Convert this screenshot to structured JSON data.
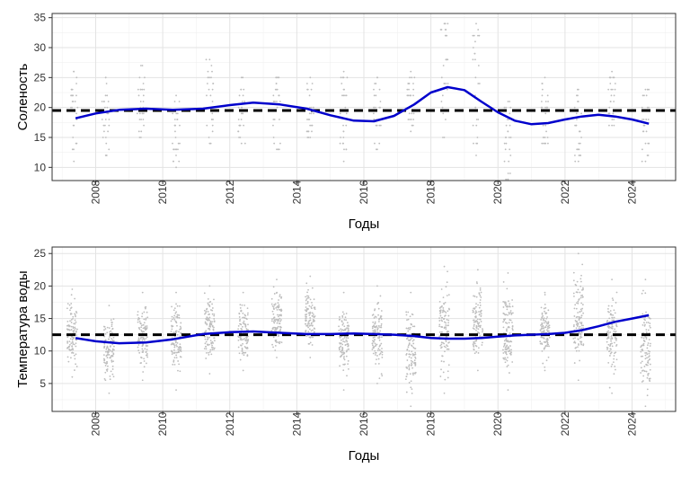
{
  "chart_data": [
    {
      "type": "scatter",
      "xlabel": "Годы",
      "ylabel": "Соленость",
      "xlim": [
        2006.7,
        2025.3
      ],
      "ylim": [
        7.8,
        35.7
      ],
      "x_ticks": [
        2008,
        2010,
        2012,
        2014,
        2016,
        2018,
        2020,
        2022,
        2024
      ],
      "y_ticks": [
        10,
        15,
        20,
        25,
        30,
        35
      ],
      "grid": true,
      "reference_line": {
        "y": 19.5,
        "style": "dashed",
        "color": "#000000"
      },
      "point_color": "#bdbdbd",
      "smooth_color": "#0000cc",
      "smooth": {
        "x": [
          2007.4,
          2008.0,
          2008.7,
          2009.5,
          2010.3,
          2011.2,
          2012.0,
          2012.7,
          2013.5,
          2014.3,
          2015.0,
          2015.7,
          2016.3,
          2016.9,
          2017.5,
          2018.0,
          2018.5,
          2019.0,
          2019.5,
          2020.0,
          2020.5,
          2021.0,
          2021.5,
          2022.0,
          2022.5,
          2023.0,
          2023.5,
          2024.0,
          2024.5
        ],
        "y": [
          18.2,
          19.0,
          19.6,
          19.8,
          19.6,
          19.8,
          20.4,
          20.8,
          20.5,
          19.8,
          18.7,
          17.8,
          17.7,
          18.6,
          20.5,
          22.5,
          23.4,
          22.9,
          21.0,
          19.2,
          17.8,
          17.2,
          17.4,
          18.0,
          18.5,
          18.8,
          18.5,
          18.0,
          17.3
        ]
      },
      "point_clusters": [
        {
          "x": 2007.35,
          "min": 11,
          "max": 26,
          "center": 18.5
        },
        {
          "x": 2008.3,
          "min": 12,
          "max": 25,
          "center": 19
        },
        {
          "x": 2009.35,
          "min": 15,
          "max": 27,
          "center": 20
        },
        {
          "x": 2010.4,
          "min": 10,
          "max": 22,
          "center": 18
        },
        {
          "x": 2011.4,
          "min": 14,
          "max": 28,
          "center": 21
        },
        {
          "x": 2012.35,
          "min": 14,
          "max": 25,
          "center": 20.5
        },
        {
          "x": 2013.4,
          "min": 13,
          "max": 25,
          "center": 20
        },
        {
          "x": 2014.4,
          "min": 15,
          "max": 25,
          "center": 20
        },
        {
          "x": 2015.4,
          "min": 11,
          "max": 26,
          "center": 17.5
        },
        {
          "x": 2016.4,
          "min": 13,
          "max": 25,
          "center": 18
        },
        {
          "x": 2017.4,
          "min": 16,
          "max": 26,
          "center": 21
        },
        {
          "x": 2018.4,
          "min": 15,
          "max": 34,
          "center": 23
        },
        {
          "x": 2019.35,
          "min": 12,
          "max": 34,
          "center": 22
        },
        {
          "x": 2020.3,
          "min": 8,
          "max": 21,
          "center": 15
        },
        {
          "x": 2021.4,
          "min": 14,
          "max": 25,
          "center": 17
        },
        {
          "x": 2022.4,
          "min": 11,
          "max": 23,
          "center": 16
        },
        {
          "x": 2023.4,
          "min": 17,
          "max": 26,
          "center": 21
        },
        {
          "x": 2024.4,
          "min": 11,
          "max": 23,
          "center": 16
        }
      ]
    },
    {
      "type": "scatter",
      "xlabel": "Годы",
      "ylabel": "Температура воды",
      "xlim": [
        2006.7,
        2025.3
      ],
      "ylim": [
        0.7,
        26.0
      ],
      "x_ticks": [
        2008,
        2010,
        2012,
        2014,
        2016,
        2018,
        2020,
        2022,
        2024
      ],
      "y_ticks": [
        5,
        10,
        15,
        20,
        25
      ],
      "grid": true,
      "reference_line": {
        "y": 12.5,
        "style": "dashed",
        "color": "#000000"
      },
      "point_color": "#bdbdbd",
      "smooth_color": "#0000cc",
      "smooth": {
        "x": [
          2007.4,
          2008.0,
          2008.7,
          2009.5,
          2010.3,
          2011.2,
          2012.0,
          2012.7,
          2013.5,
          2014.3,
          2015.0,
          2015.7,
          2016.3,
          2016.9,
          2017.5,
          2018.0,
          2018.5,
          2019.0,
          2019.5,
          2020.0,
          2020.5,
          2021.0,
          2021.5,
          2022.0,
          2022.5,
          2023.0,
          2023.5,
          2024.0,
          2024.5
        ],
        "y": [
          12.0,
          11.5,
          11.2,
          11.3,
          11.8,
          12.6,
          12.9,
          13.0,
          12.8,
          12.6,
          12.6,
          12.7,
          12.6,
          12.5,
          12.3,
          12.0,
          11.9,
          11.9,
          12.0,
          12.2,
          12.4,
          12.5,
          12.6,
          12.8,
          13.2,
          13.8,
          14.5,
          15.0,
          15.5
        ]
      },
      "point_clusters": [
        {
          "x": 2007.3,
          "min": 6,
          "max": 19.5,
          "center": 12.5
        },
        {
          "x": 2008.4,
          "min": 3.5,
          "max": 17,
          "center": 11
        },
        {
          "x": 2009.4,
          "min": 5.5,
          "max": 19,
          "center": 11.5
        },
        {
          "x": 2010.4,
          "min": 4,
          "max": 19,
          "center": 12
        },
        {
          "x": 2011.4,
          "min": 6.5,
          "max": 20,
          "center": 13
        },
        {
          "x": 2012.4,
          "min": 7,
          "max": 19,
          "center": 13
        },
        {
          "x": 2013.4,
          "min": 9,
          "max": 21,
          "center": 14
        },
        {
          "x": 2014.4,
          "min": 9,
          "max": 21.5,
          "center": 14.5
        },
        {
          "x": 2015.4,
          "min": 4,
          "max": 19,
          "center": 11.5
        },
        {
          "x": 2016.4,
          "min": 5,
          "max": 20,
          "center": 13
        },
        {
          "x": 2017.4,
          "min": 1.5,
          "max": 19,
          "center": 10
        },
        {
          "x": 2018.4,
          "min": 3.5,
          "max": 23,
          "center": 12
        },
        {
          "x": 2019.4,
          "min": 7,
          "max": 22.5,
          "center": 13.5
        },
        {
          "x": 2020.3,
          "min": 4,
          "max": 22,
          "center": 14
        },
        {
          "x": 2021.4,
          "min": 7,
          "max": 19,
          "center": 12.5
        },
        {
          "x": 2022.4,
          "min": 5.5,
          "max": 25,
          "center": 13
        },
        {
          "x": 2023.4,
          "min": 3.5,
          "max": 21,
          "center": 13.5
        },
        {
          "x": 2024.4,
          "min": 1.5,
          "max": 21,
          "center": 16
        }
      ]
    }
  ]
}
